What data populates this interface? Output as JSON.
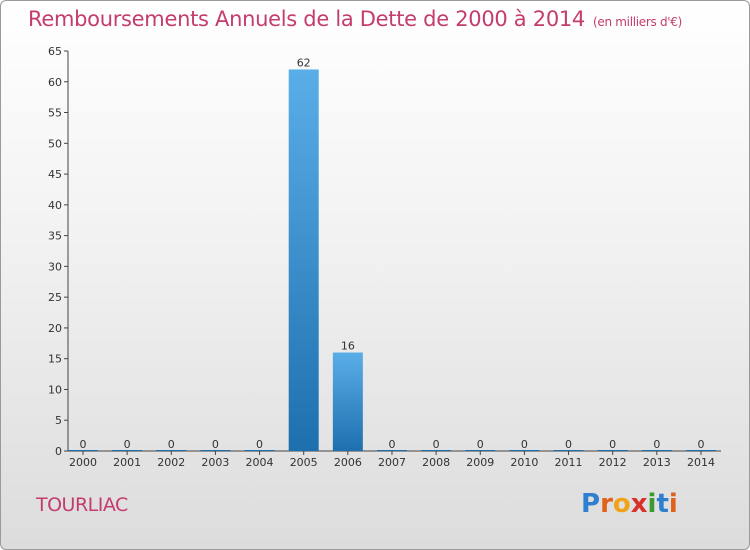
{
  "title": {
    "main": "Remboursements Annuels de la Dette de 2000 à 2014",
    "unit": "(en milliers d'€)"
  },
  "commune": "TOURLIAC",
  "logo": {
    "text": "Proxiti",
    "letters": [
      {
        "ch": "P",
        "color": "#2f7fd0"
      },
      {
        "ch": "r",
        "color": "#e0611a"
      },
      {
        "ch": "o",
        "color": "#f0a31a"
      },
      {
        "ch": "x",
        "color": "#d8302a"
      },
      {
        "ch": "i",
        "color": "#3a9a2e"
      },
      {
        "ch": "t",
        "color": "#2f7fd0"
      },
      {
        "ch": "i",
        "color": "#e0611a"
      }
    ]
  },
  "colors": {
    "title": "#c43c6e",
    "bar_light": "#5aaee8",
    "bar_dark": "#1e6fae"
  },
  "chart_data": {
    "type": "bar",
    "title": "Remboursements Annuels de la Dette de 2000 à 2014",
    "xlabel": "",
    "ylabel": "",
    "categories": [
      "2000",
      "2001",
      "2002",
      "2003",
      "2004",
      "2005",
      "2006",
      "2007",
      "2008",
      "2009",
      "2010",
      "2011",
      "2012",
      "2013",
      "2014"
    ],
    "values": [
      0,
      0,
      0,
      0,
      0,
      62,
      16,
      0,
      0,
      0,
      0,
      0,
      0,
      0,
      0
    ],
    "ylim": [
      0,
      65
    ],
    "yticks": [
      0,
      5,
      10,
      15,
      20,
      25,
      30,
      35,
      40,
      45,
      50,
      55,
      60,
      65
    ],
    "grid": false,
    "legend": "none"
  }
}
